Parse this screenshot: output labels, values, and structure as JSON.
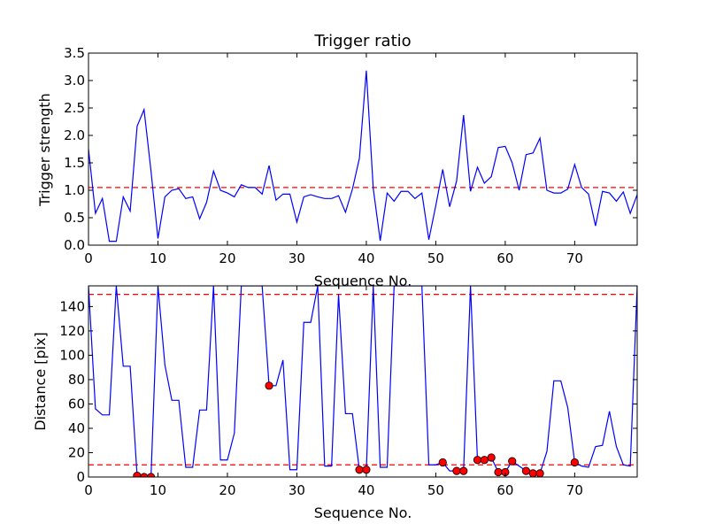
{
  "chart_data": [
    {
      "type": "line",
      "title": "Trigger ratio",
      "xlabel": "Sequence No.",
      "ylabel": "Trigger strength",
      "xlim": [
        0,
        79
      ],
      "ylim": [
        0,
        3.5
      ],
      "xticks": [
        0,
        10,
        20,
        30,
        40,
        50,
        60,
        70
      ],
      "yticks": [
        0.0,
        0.5,
        1.0,
        1.5,
        2.0,
        2.5,
        3.0,
        3.5
      ],
      "yticklabels": [
        "0.0",
        "0.5",
        "1.0",
        "1.5",
        "2.0",
        "2.5",
        "3.0",
        "3.5"
      ],
      "grid": false,
      "series": [
        {
          "color": "#0000ff",
          "x": [
            0,
            1,
            2,
            3,
            4,
            5,
            6,
            7,
            8,
            9,
            10,
            11,
            12,
            13,
            14,
            15,
            16,
            17,
            18,
            19,
            20,
            21,
            22,
            23,
            24,
            25,
            26,
            27,
            28,
            29,
            30,
            31,
            32,
            33,
            34,
            35,
            36,
            37,
            38,
            39,
            40,
            41,
            42,
            43,
            44,
            45,
            46,
            47,
            48,
            49,
            50,
            51,
            52,
            53,
            54,
            55,
            56,
            57,
            58,
            59,
            60,
            61,
            62,
            63,
            64,
            65,
            66,
            67,
            68,
            69,
            70,
            71,
            72,
            73,
            74,
            75,
            76,
            77,
            78,
            79
          ],
          "y": [
            1.75,
            0.58,
            0.85,
            0.07,
            0.07,
            0.88,
            0.62,
            2.17,
            2.47,
            1.35,
            0.12,
            0.88,
            1.0,
            1.03,
            0.85,
            0.88,
            0.48,
            0.78,
            1.35,
            1.0,
            0.95,
            0.88,
            1.1,
            1.05,
            1.05,
            0.93,
            1.45,
            0.82,
            0.93,
            0.93,
            0.42,
            0.88,
            0.92,
            0.88,
            0.85,
            0.85,
            0.9,
            0.6,
            1.02,
            1.58,
            3.18,
            1.03,
            0.08,
            0.95,
            0.8,
            0.98,
            0.98,
            0.85,
            0.95,
            0.1,
            0.72,
            1.38,
            0.7,
            1.17,
            2.37,
            0.98,
            1.42,
            1.13,
            1.25,
            1.78,
            1.8,
            1.5,
            1.0,
            1.65,
            1.68,
            1.95,
            1.0,
            0.95,
            0.95,
            1.02,
            1.47,
            1.05,
            0.93,
            0.35,
            0.98,
            0.95,
            0.8,
            0.97,
            0.58,
            0.92
          ]
        }
      ],
      "threshold": {
        "value": 1.05,
        "color": "#ff0000",
        "style": "dashed"
      }
    },
    {
      "type": "line",
      "title": "",
      "xlabel": "Sequence No.",
      "ylabel": "Distance [pix]",
      "xlim": [
        0,
        79
      ],
      "ylim": [
        0,
        157
      ],
      "xticks": [
        0,
        10,
        20,
        30,
        40,
        50,
        60,
        70
      ],
      "yticks": [
        0,
        20,
        40,
        60,
        80,
        100,
        120,
        140
      ],
      "yticklabels": [
        "0",
        "20",
        "40",
        "60",
        "80",
        "100",
        "120",
        "140"
      ],
      "grid": false,
      "series": [
        {
          "color": "#0000ff",
          "x": [
            0,
            1,
            2,
            3,
            4,
            5,
            6,
            7,
            8,
            9,
            10,
            11,
            12,
            13,
            14,
            15,
            16,
            17,
            18,
            19,
            20,
            21,
            22,
            23,
            24,
            25,
            26,
            27,
            28,
            29,
            30,
            31,
            32,
            33,
            34,
            35,
            36,
            37,
            38,
            39,
            40,
            41,
            42,
            43,
            44,
            45,
            46,
            47,
            48,
            49,
            50,
            51,
            52,
            53,
            54,
            55,
            56,
            57,
            58,
            59,
            60,
            61,
            62,
            63,
            64,
            65,
            66,
            67,
            68,
            69,
            70,
            71,
            72,
            73,
            74,
            75,
            76,
            77,
            78,
            79
          ],
          "y": [
            157,
            56,
            51,
            51,
            157,
            91,
            91,
            1,
            0,
            0,
            157,
            92,
            63,
            63,
            8,
            8,
            55,
            55,
            157,
            14,
            14,
            36,
            157,
            157,
            157,
            157,
            75,
            75,
            96,
            6,
            6,
            127,
            127,
            157,
            9,
            9,
            150,
            52,
            52,
            6,
            6,
            157,
            8,
            8,
            157,
            157,
            157,
            157,
            157,
            10,
            10,
            12,
            5,
            5,
            5,
            157,
            14,
            14,
            16,
            4,
            4,
            13,
            9,
            5,
            3,
            3,
            21,
            79,
            79,
            57,
            12,
            9,
            8,
            25,
            26,
            54,
            25,
            10,
            9,
            157
          ]
        }
      ],
      "markers": {
        "color": "#ff0000",
        "x": [
          7,
          8,
          9,
          26,
          39,
          40,
          51,
          53,
          54,
          56,
          57,
          58,
          59,
          60,
          61,
          63,
          64,
          65,
          70
        ],
        "y": [
          1,
          0,
          0,
          75,
          6,
          6,
          12,
          5,
          5,
          14,
          14,
          16,
          4,
          4,
          13,
          5,
          3,
          3,
          12
        ]
      },
      "thresholds": [
        {
          "value": 150,
          "color": "#ff0000",
          "style": "dashed"
        },
        {
          "value": 10,
          "color": "#ff0000",
          "style": "dashed"
        }
      ]
    }
  ]
}
